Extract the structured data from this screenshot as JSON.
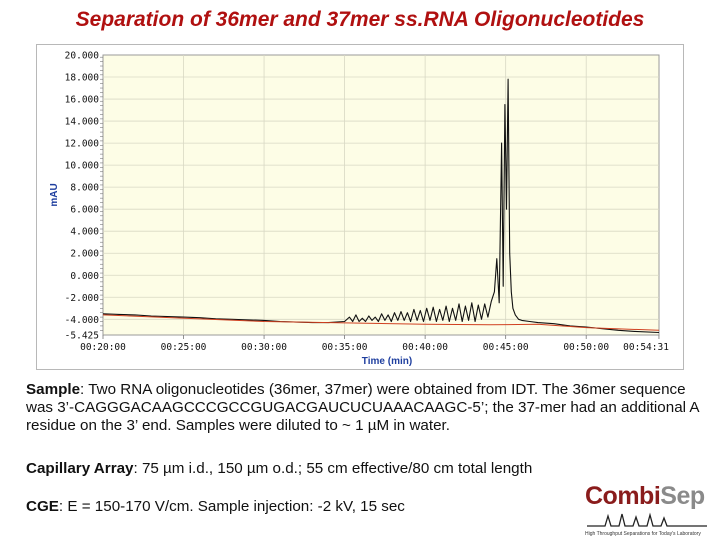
{
  "title": "Separation of 36mer and 37mer ss.RNA Oligonucleotides",
  "chart_data": {
    "type": "line",
    "xlabel": "Time (min)",
    "ylabel": "mAU",
    "x_ticks": [
      "00:20:00",
      "00:25:00",
      "00:30:00",
      "00:35:00",
      "00:40:00",
      "00:45:00",
      "00:50:00",
      "00:54:31"
    ],
    "y_ticks": [
      "20.000",
      "18.000",
      "16.000",
      "14.000",
      "12.000",
      "10.000",
      "8.000",
      "6.000",
      "4.000",
      "2.000",
      "0.000",
      "-2.000",
      "-4.000",
      "-5.425"
    ],
    "xlim": [
      20.0,
      54.52
    ],
    "ylim": [
      -5.425,
      20.0
    ],
    "grid": true,
    "plot_background": "#fdfde6",
    "trace_color": "#111111",
    "baseline_color": "#d04020",
    "series": [
      {
        "values_x": [
          20.0,
          21.0,
          22.0,
          23.0,
          24.0,
          25.0,
          26.0,
          27.0,
          28.0,
          29.0,
          30.0,
          31.0,
          32.0,
          33.0,
          34.0,
          35.0,
          35.3,
          35.5,
          35.7,
          35.9,
          36.1,
          36.3,
          36.5,
          36.7,
          36.9,
          37.1,
          37.3,
          37.5,
          37.7,
          37.9,
          38.1,
          38.3,
          38.5,
          38.7,
          38.9,
          39.1,
          39.3,
          39.5,
          39.7,
          39.9,
          40.1,
          40.3,
          40.5,
          40.7,
          40.9,
          41.1,
          41.3,
          41.5,
          41.7,
          41.9,
          42.1,
          42.3,
          42.5,
          42.7,
          42.9,
          43.1,
          43.3,
          43.5,
          43.7,
          43.9,
          44.1,
          44.3,
          44.45,
          44.6,
          44.75,
          44.85,
          44.95,
          45.05,
          45.15,
          45.25,
          45.35,
          45.45,
          45.6,
          45.8,
          46.0,
          46.5,
          47.0,
          48.0,
          49.0,
          50.0,
          51.0,
          52.0,
          53.0,
          54.52
        ],
        "values_y": [
          -3.5,
          -3.55,
          -3.6,
          -3.7,
          -3.75,
          -3.8,
          -3.85,
          -3.95,
          -4.0,
          -4.05,
          -4.1,
          -4.2,
          -4.25,
          -4.3,
          -4.3,
          -4.2,
          -3.8,
          -4.2,
          -3.6,
          -4.2,
          -3.9,
          -4.2,
          -3.7,
          -4.1,
          -3.8,
          -4.2,
          -3.5,
          -4.1,
          -3.6,
          -4.2,
          -3.4,
          -4.1,
          -3.3,
          -4.1,
          -3.4,
          -4.2,
          -3.1,
          -4.1,
          -3.2,
          -4.2,
          -3.0,
          -4.1,
          -2.9,
          -4.2,
          -3.1,
          -4.1,
          -2.8,
          -4.2,
          -3.0,
          -4.1,
          -2.6,
          -4.2,
          -2.8,
          -4.1,
          -2.5,
          -4.2,
          -2.7,
          -4.0,
          -2.6,
          -3.8,
          -2.4,
          -1.5,
          1.5,
          -2.5,
          12.0,
          -1.0,
          15.5,
          6.0,
          17.8,
          2.0,
          -1.5,
          -3.0,
          -3.6,
          -4.0,
          -4.1,
          -4.2,
          -4.3,
          -4.4,
          -4.6,
          -4.7,
          -4.85,
          -5.0,
          -5.1,
          -5.2
        ]
      },
      {
        "values_x": [
          20.0,
          30.0,
          40.0,
          44.0,
          47.0,
          50.0,
          54.52
        ],
        "values_y": [
          -3.6,
          -4.2,
          -4.45,
          -4.5,
          -4.45,
          -4.75,
          -5.0
        ]
      }
    ]
  },
  "sample": {
    "label": "Sample",
    "text": ": Two RNA oligonucleotides (36mer, 37mer) were obtained from IDT. The 36mer sequence was 3’-CAGGGACAAGCCCGCCGUGACGAUCUCUAAACAAGC-5’; the 37-mer had an additional A residue on the 3’ end. Samples were diluted to ~ 1 µM in water."
  },
  "capillary": {
    "label": "Capillary Array",
    "text": ": 75 µm i.d., 150 µm o.d.; 55 cm effective/80 cm total length"
  },
  "cge": {
    "label": "CGE",
    "text": ": E = 150-170 V/cm. Sample injection: -2 kV, 15 sec"
  },
  "logo": {
    "part1": "Combi",
    "part2": "Sep",
    "tagline": "High Throughput Separations for Today's Laboratory"
  }
}
